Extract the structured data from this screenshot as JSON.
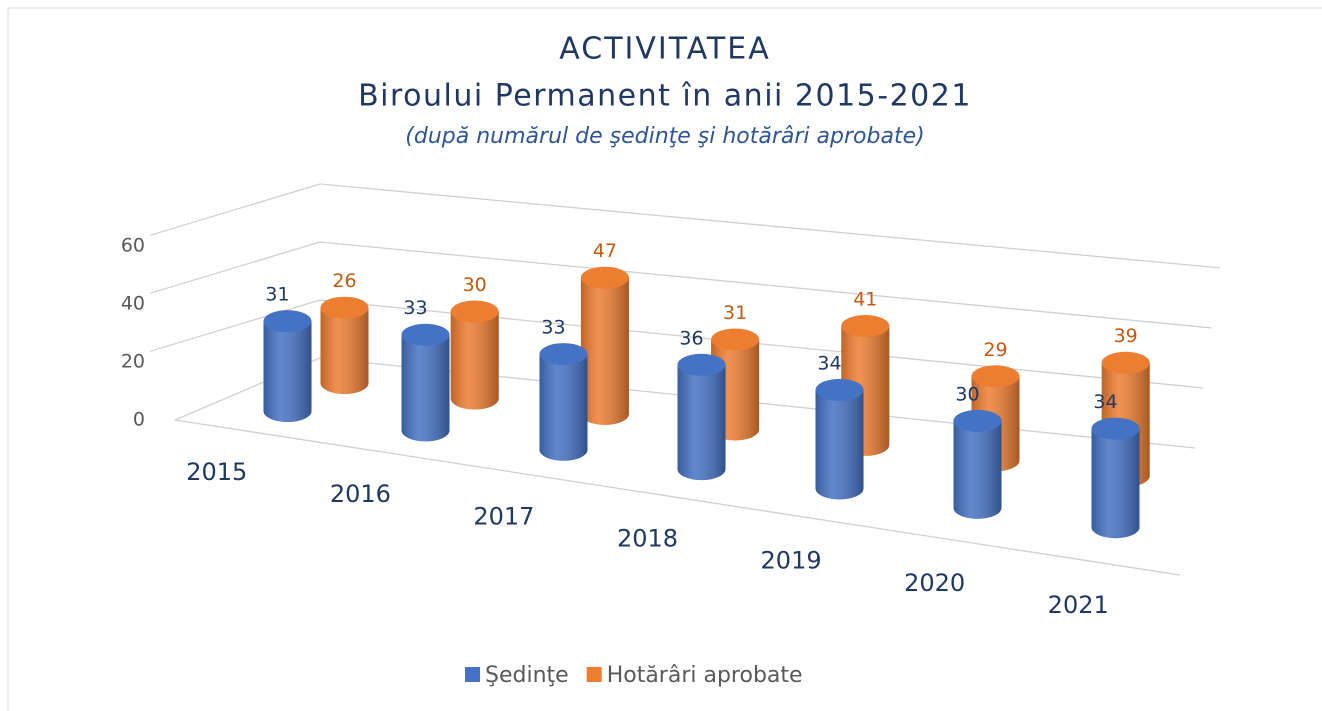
{
  "chart_data": {
    "type": "bar3d",
    "title": "ACTIVITATEA",
    "subtitle": "Biroului Permanent în anii 2015-2021",
    "annotation": "(după numărul de şedinţe şi hotărâri aprobate)",
    "categories": [
      "2015",
      "2016",
      "2017",
      "2018",
      "2019",
      "2020",
      "2021"
    ],
    "series": [
      {
        "name": "Şedinţe",
        "color": "#4472c4",
        "values": [
          31,
          33,
          33,
          36,
          34,
          30,
          34
        ]
      },
      {
        "name": "Hotărâri aprobate",
        "color": "#ed7d31",
        "values": [
          26,
          30,
          47,
          31,
          41,
          29,
          39
        ]
      }
    ],
    "ylim": [
      0,
      60
    ],
    "yticks": [
      0,
      20,
      40,
      60
    ],
    "grid": true,
    "legend": "bottom"
  }
}
